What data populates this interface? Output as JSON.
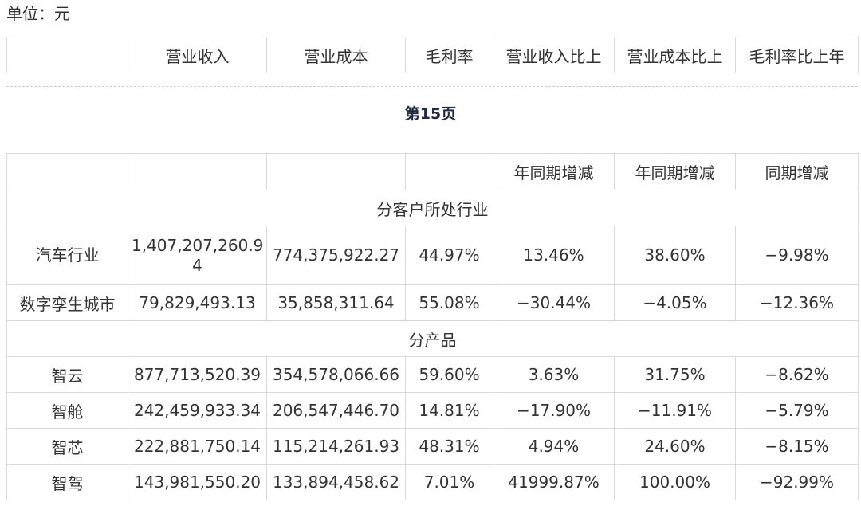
{
  "unit_label": "单位：元",
  "top_header": [
    "",
    "营业收入",
    "营业成本",
    "毛利率",
    "营业收入比上",
    "营业成本比上",
    "毛利率比上年"
  ],
  "page_label": "第15页",
  "main_header": [
    "",
    "",
    "",
    "",
    "年同期增减",
    "年同期增减",
    "同期增减"
  ],
  "section_industry": "分客户所处行业",
  "industry_rows": [
    {
      "name": "汽车行业",
      "revenue_a": "1,407,207,260.9",
      "revenue_b": "4",
      "cost": "774,375,922.27",
      "margin": "44.97%",
      "rev_change": "13.46%",
      "cost_change": "38.60%",
      "margin_change": "−9.98%"
    },
    {
      "name": "数字孪生城市",
      "revenue": "79,829,493.13",
      "cost": "35,858,311.64",
      "margin": "55.08%",
      "rev_change": "−30.44%",
      "cost_change": "−4.05%",
      "margin_change": "−12.36%"
    }
  ],
  "section_product": "分产品",
  "product_rows": [
    {
      "name": "智云",
      "revenue": "877,713,520.39",
      "cost": "354,578,066.66",
      "margin": "59.60%",
      "rev_change": "3.63%",
      "cost_change": "31.75%",
      "margin_change": "−8.62%"
    },
    {
      "name": "智舱",
      "revenue": "242,459,933.34",
      "cost": "206,547,446.70",
      "margin": "14.81%",
      "rev_change": "−17.90%",
      "cost_change": "−11.91%",
      "margin_change": "−5.79%"
    },
    {
      "name": "智芯",
      "revenue": "222,881,750.14",
      "cost": "115,214,261.93",
      "margin": "48.31%",
      "rev_change": "4.94%",
      "cost_change": "24.60%",
      "margin_change": "−8.15%"
    },
    {
      "name": "智驾",
      "revenue": "143,981,550.20",
      "cost": "133,894,458.62",
      "margin": "7.01%",
      "rev_change": "41999.87%",
      "cost_change": "100.00%",
      "margin_change": "−92.99%"
    }
  ]
}
